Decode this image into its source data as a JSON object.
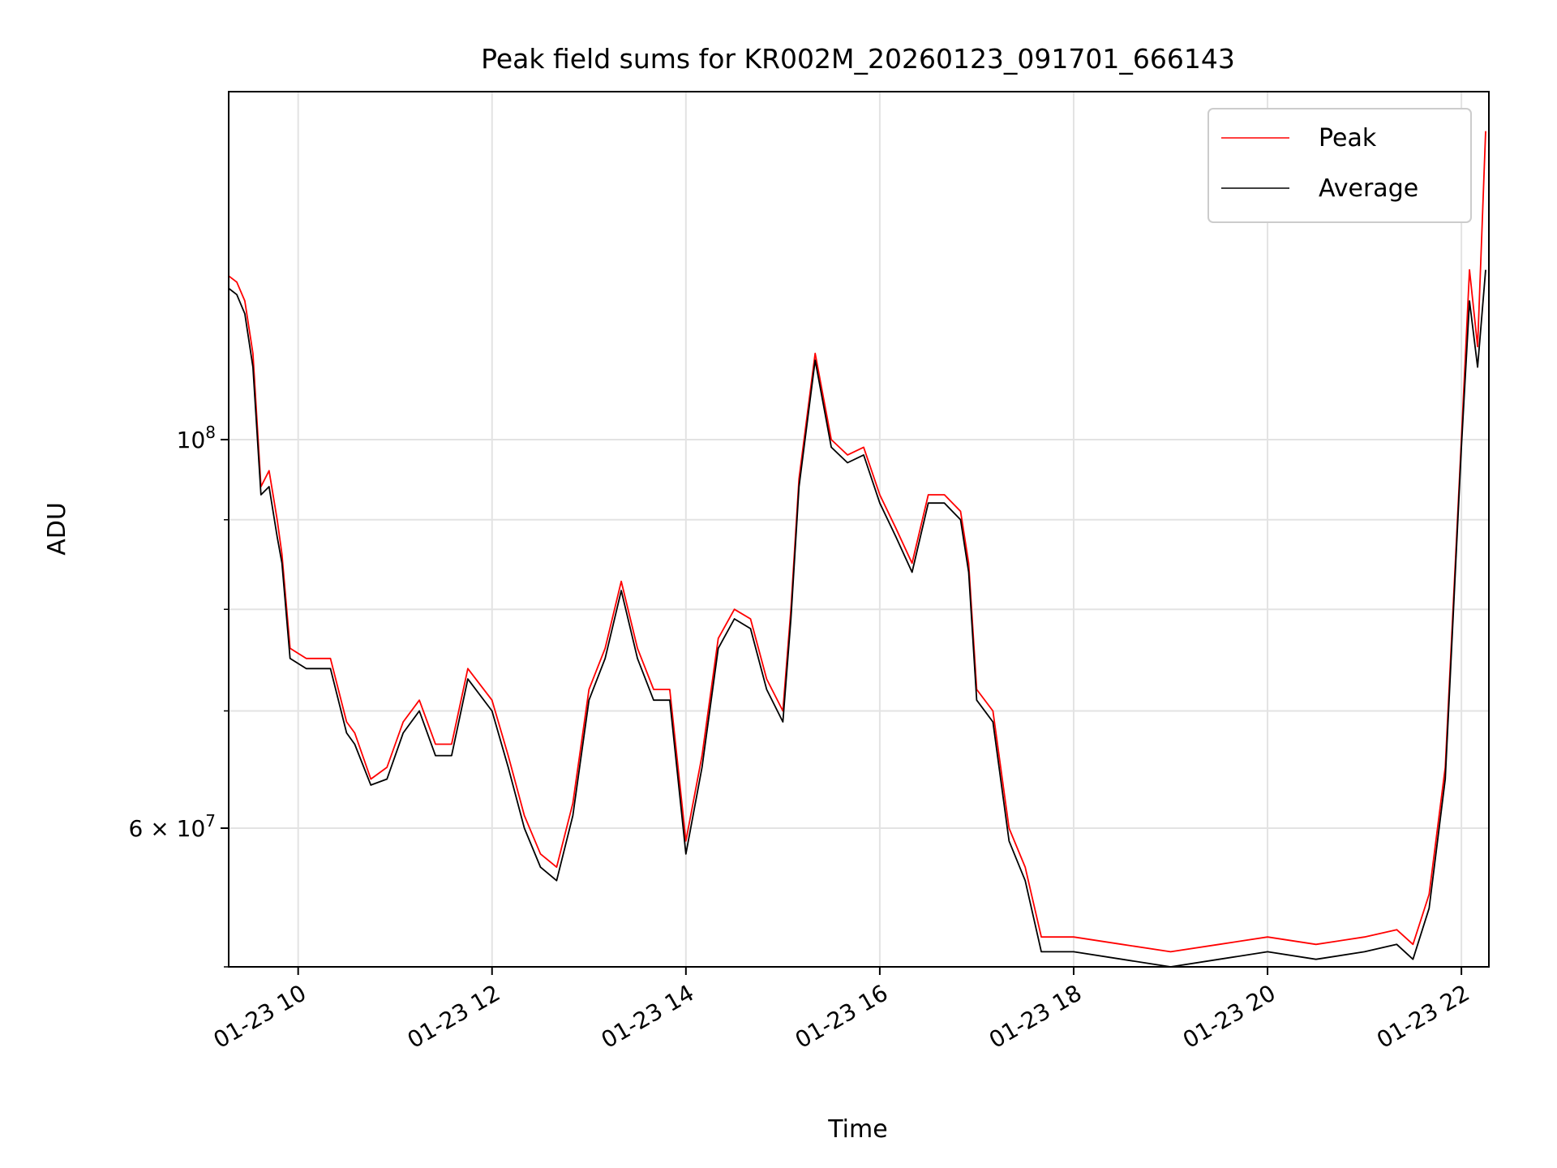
{
  "chart_data": {
    "type": "line",
    "title": "Peak field sums for KR002M_20260123_091701_666143",
    "xlabel": "Time",
    "ylabel": "ADU",
    "y_scale": "log",
    "grid": true,
    "legend_position": "top-right",
    "x_range": [
      "2026-01-23 09:17",
      "2026-01-23 22:17"
    ],
    "ylim": [
      50000000,
      158000000
    ],
    "x_ticks": [
      "01-23 10",
      "01-23 12",
      "01-23 14",
      "01-23 16",
      "01-23 18",
      "01-23 20",
      "01-23 22"
    ],
    "x_tick_times": [
      "2026-01-23 10:00",
      "2026-01-23 12:00",
      "2026-01-23 14:00",
      "2026-01-23 16:00",
      "2026-01-23 18:00",
      "2026-01-23 20:00",
      "2026-01-23 22:00"
    ],
    "y_ticks": [
      {
        "label": "10",
        "exponent": "8",
        "value": 100000000
      },
      {
        "label": "6 × 10",
        "exponent": "7",
        "value": 60000000
      }
    ],
    "y_minor_ticks": [
      50000000,
      70000000,
      80000000,
      90000000
    ],
    "colors": {
      "peak": "#ff0000",
      "average": "#000000"
    },
    "series": [
      {
        "name": "Peak",
        "color": "#ff0000",
        "x": [
          "2026-01-23 09:17",
          "2026-01-23 09:22",
          "2026-01-23 09:27",
          "2026-01-23 09:32",
          "2026-01-23 09:37",
          "2026-01-23 09:42",
          "2026-01-23 09:47",
          "2026-01-23 09:50",
          "2026-01-23 09:55",
          "2026-01-23 10:05",
          "2026-01-23 10:20",
          "2026-01-23 10:30",
          "2026-01-23 10:35",
          "2026-01-23 10:45",
          "2026-01-23 10:55",
          "2026-01-23 11:05",
          "2026-01-23 11:15",
          "2026-01-23 11:25",
          "2026-01-23 11:35",
          "2026-01-23 11:45",
          "2026-01-23 12:00",
          "2026-01-23 12:10",
          "2026-01-23 12:20",
          "2026-01-23 12:30",
          "2026-01-23 12:40",
          "2026-01-23 12:50",
          "2026-01-23 13:00",
          "2026-01-23 13:10",
          "2026-01-23 13:20",
          "2026-01-23 13:30",
          "2026-01-23 13:40",
          "2026-01-23 13:50",
          "2026-01-23 14:00",
          "2026-01-23 14:10",
          "2026-01-23 14:20",
          "2026-01-23 14:30",
          "2026-01-23 14:40",
          "2026-01-23 14:50",
          "2026-01-23 15:00",
          "2026-01-23 15:05",
          "2026-01-23 15:10",
          "2026-01-23 15:20",
          "2026-01-23 15:30",
          "2026-01-23 15:40",
          "2026-01-23 15:50",
          "2026-01-23 16:00",
          "2026-01-23 16:10",
          "2026-01-23 16:20",
          "2026-01-23 16:30",
          "2026-01-23 16:40",
          "2026-01-23 16:50",
          "2026-01-23 16:55",
          "2026-01-23 17:00",
          "2026-01-23 17:10",
          "2026-01-23 17:20",
          "2026-01-23 17:30",
          "2026-01-23 17:40",
          "2026-01-23 18:00",
          "2026-01-23 18:30",
          "2026-01-23 19:00",
          "2026-01-23 19:30",
          "2026-01-23 20:00",
          "2026-01-23 20:30",
          "2026-01-23 21:00",
          "2026-01-23 21:20",
          "2026-01-23 21:30",
          "2026-01-23 21:40",
          "2026-01-23 21:50",
          "2026-01-23 22:00",
          "2026-01-23 22:05",
          "2026-01-23 22:10",
          "2026-01-23 22:15"
        ],
        "y": [
          124000000,
          123000000,
          120000000,
          112000000,
          94000000,
          96000000,
          90000000,
          86000000,
          76000000,
          75000000,
          75000000,
          69000000,
          68000000,
          64000000,
          65000000,
          69000000,
          71000000,
          67000000,
          67000000,
          74000000,
          71000000,
          66000000,
          61000000,
          58000000,
          57000000,
          62000000,
          72000000,
          76000000,
          83000000,
          76000000,
          72000000,
          72000000,
          59000000,
          66000000,
          77000000,
          80000000,
          79000000,
          73000000,
          70000000,
          80000000,
          95000000,
          112000000,
          100000000,
          98000000,
          99000000,
          93000000,
          89000000,
          85000000,
          93000000,
          93000000,
          91000000,
          85000000,
          72000000,
          70000000,
          60000000,
          57000000,
          52000000,
          52000000,
          51500000,
          51000000,
          51500000,
          52000000,
          51500000,
          52000000,
          52500000,
          51500000,
          55000000,
          65000000,
          100000000,
          125000000,
          113000000,
          150000000
        ]
      },
      {
        "name": "Average",
        "color": "#000000",
        "x": [
          "2026-01-23 09:17",
          "2026-01-23 09:22",
          "2026-01-23 09:27",
          "2026-01-23 09:32",
          "2026-01-23 09:37",
          "2026-01-23 09:42",
          "2026-01-23 09:47",
          "2026-01-23 09:50",
          "2026-01-23 09:55",
          "2026-01-23 10:05",
          "2026-01-23 10:20",
          "2026-01-23 10:30",
          "2026-01-23 10:35",
          "2026-01-23 10:45",
          "2026-01-23 10:55",
          "2026-01-23 11:05",
          "2026-01-23 11:15",
          "2026-01-23 11:25",
          "2026-01-23 11:35",
          "2026-01-23 11:45",
          "2026-01-23 12:00",
          "2026-01-23 12:10",
          "2026-01-23 12:20",
          "2026-01-23 12:30",
          "2026-01-23 12:40",
          "2026-01-23 12:50",
          "2026-01-23 13:00",
          "2026-01-23 13:10",
          "2026-01-23 13:20",
          "2026-01-23 13:30",
          "2026-01-23 13:40",
          "2026-01-23 13:50",
          "2026-01-23 14:00",
          "2026-01-23 14:10",
          "2026-01-23 14:20",
          "2026-01-23 14:30",
          "2026-01-23 14:40",
          "2026-01-23 14:50",
          "2026-01-23 15:00",
          "2026-01-23 15:05",
          "2026-01-23 15:10",
          "2026-01-23 15:20",
          "2026-01-23 15:30",
          "2026-01-23 15:40",
          "2026-01-23 15:50",
          "2026-01-23 16:00",
          "2026-01-23 16:10",
          "2026-01-23 16:20",
          "2026-01-23 16:30",
          "2026-01-23 16:40",
          "2026-01-23 16:50",
          "2026-01-23 16:55",
          "2026-01-23 17:00",
          "2026-01-23 17:10",
          "2026-01-23 17:20",
          "2026-01-23 17:30",
          "2026-01-23 17:40",
          "2026-01-23 18:00",
          "2026-01-23 18:30",
          "2026-01-23 19:00",
          "2026-01-23 19:30",
          "2026-01-23 20:00",
          "2026-01-23 20:30",
          "2026-01-23 21:00",
          "2026-01-23 21:20",
          "2026-01-23 21:30",
          "2026-01-23 21:40",
          "2026-01-23 21:50",
          "2026-01-23 22:00",
          "2026-01-23 22:05",
          "2026-01-23 22:10",
          "2026-01-23 22:15"
        ],
        "y": [
          122000000,
          121000000,
          118000000,
          110000000,
          93000000,
          94000000,
          88000000,
          85000000,
          75000000,
          74000000,
          74000000,
          68000000,
          67000000,
          63500000,
          64000000,
          68000000,
          70000000,
          66000000,
          66000000,
          73000000,
          70000000,
          65000000,
          60000000,
          57000000,
          56000000,
          61000000,
          71000000,
          75000000,
          82000000,
          75000000,
          71000000,
          71000000,
          58000000,
          65000000,
          76000000,
          79000000,
          78000000,
          72000000,
          69000000,
          79000000,
          94000000,
          111000000,
          99000000,
          97000000,
          98000000,
          92000000,
          88000000,
          84000000,
          92000000,
          92000000,
          90000000,
          84000000,
          71000000,
          69000000,
          59000000,
          56000000,
          51000000,
          51000000,
          50500000,
          50000000,
          50500000,
          51000000,
          50500000,
          51000000,
          51500000,
          50500000,
          54000000,
          64000000,
          99000000,
          120000000,
          110000000,
          125000000
        ]
      }
    ]
  }
}
